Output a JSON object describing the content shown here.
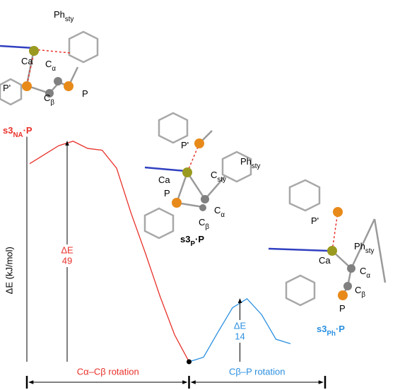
{
  "chart_data": {
    "type": "line",
    "y_label": "ΔE (kJ/mol)",
    "categories": [
      null,
      null,
      null,
      null,
      null,
      null,
      null,
      null,
      null,
      null,
      null,
      null,
      null,
      null,
      null,
      null,
      null,
      null,
      null
    ],
    "ylim": [
      0,
      50
    ],
    "series": [
      {
        "name": "Cα–Cβ rotation",
        "color": "#e8312a",
        "values": [
          44,
          46,
          48,
          49,
          47.4,
          47,
          43,
          33,
          24,
          14.5,
          6,
          0,
          null,
          null,
          null,
          null,
          null,
          null,
          null
        ]
      },
      {
        "name": "Cβ–P rotation",
        "color": "#2a8fe0",
        "values": [
          null,
          null,
          null,
          null,
          null,
          null,
          null,
          null,
          null,
          null,
          null,
          0,
          1,
          6.6,
          12,
          14,
          10.5,
          5,
          4
        ]
      }
    ],
    "annotations": [
      {
        "label": "ΔE",
        "value": 49,
        "color": "#e8312a"
      },
      {
        "label": "ΔE",
        "value": 14,
        "color": "#2a8fe0"
      }
    ]
  },
  "structures": [
    {
      "name": {
        "text": "s3",
        "sub": "NA",
        "after": "·P"
      },
      "color": "#e8312a",
      "labels": [
        {
          "text": "Ph",
          "sub": "sty"
        },
        {
          "text": "Ca"
        },
        {
          "text": "C",
          "sub": "α"
        },
        {
          "text": "P'"
        },
        {
          "text": "C",
          "sub": "β"
        },
        {
          "text": "P"
        }
      ]
    },
    {
      "name": {
        "text": "s3",
        "sub": "P",
        "after": "·P"
      },
      "color": "#000000",
      "labels": [
        {
          "text": "P'"
        },
        {
          "text": "Ca"
        },
        {
          "text": "Ph",
          "sub": "sty"
        },
        {
          "text": "C",
          "sub": "sty"
        },
        {
          "text": "P"
        },
        {
          "text": "C",
          "sub": "α"
        },
        {
          "text": "C",
          "sub": "β"
        }
      ]
    },
    {
      "name": {
        "text": "s3",
        "sub": "Ph",
        "after": "·P"
      },
      "color": "#2a8fe0",
      "labels": [
        {
          "text": "P'"
        },
        {
          "text": "Ph",
          "sub": "sty"
        },
        {
          "text": "Ca"
        },
        {
          "text": "C",
          "sub": "α"
        },
        {
          "text": "C",
          "sub": "β"
        },
        {
          "text": "P"
        }
      ]
    }
  ]
}
